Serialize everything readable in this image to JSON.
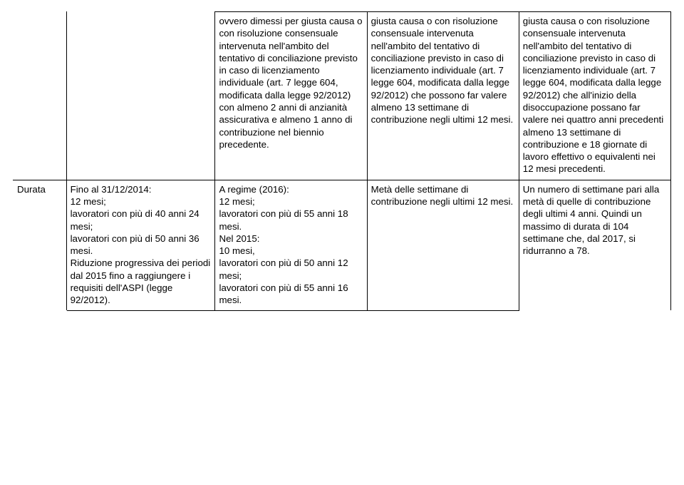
{
  "table": {
    "row1": {
      "label": "",
      "col2": "",
      "col3": "ovvero  dimessi per giusta causa o con risoluzione consensuale intervenuta nell'ambito del tentativo di conciliazione previsto in caso di licenziamento individuale (art. 7 legge 604, modificata dalla legge 92/2012) con almeno 2 anni di anzianità assicurativa e almeno 1 anno di contribuzione nel biennio precedente.",
      "col4": "giusta causa o con risoluzione consensuale intervenuta nell'ambito del tentativo di conciliazione previsto in caso di licenziamento individuale (art. 7 legge 604, modificata dalla legge 92/2012) che possono far valere almeno 13 settimane di contribuzione negli ultimi 12 mesi.",
      "col5": "giusta causa o con risoluzione consensuale intervenuta nell'ambito del tentativo di conciliazione previsto in caso di licenziamento individuale (art. 7 legge 604, modificata dalla legge 92/2012) che all'inizio della disoccupazione possano far valere nei quattro anni precedenti almeno 13 settimane di contribuzione e 18 giornate di lavoro effettivo o equivalenti nei 12 mesi precedenti."
    },
    "row2": {
      "label": "Durata",
      "col2": "Fino al 31/12/2014:\n12 mesi;\nlavoratori con più di 40 anni 24 mesi;\nlavoratori con più di 50 anni 36 mesi.\nRiduzione progressiva dei periodi dal 2015 fino a raggiungere i requisiti dell'ASPI (legge 92/2012).",
      "col3": "A regime (2016):\n12 mesi;\nlavoratori con più di 55 anni 18 mesi.\nNel 2015:\n10 mesi,\nlavoratori con più di 50 anni 12 mesi;\nlavoratori con più di 55 anni 16 mesi.",
      "col4": "Metà delle settimane di contribuzione negli ultimi 12 mesi.",
      "col5": "Un numero di settimane pari alla metà di quelle di contribuzione degli ultimi 4 anni. Quindi un massimo di durata di 104 settimane che, dal 2017, si ridurranno a 78."
    }
  }
}
